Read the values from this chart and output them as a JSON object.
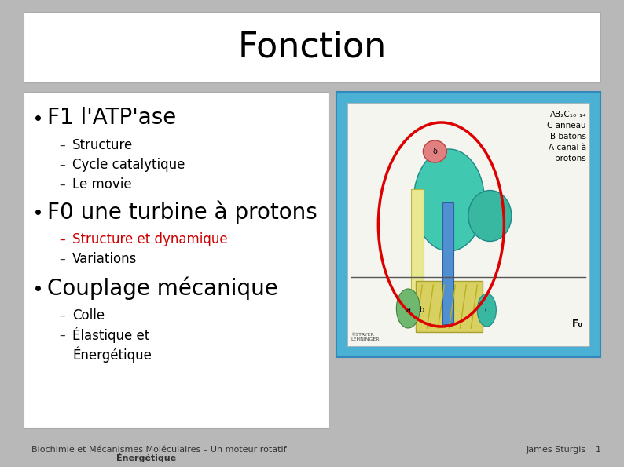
{
  "title": "Fonction",
  "bg_color": "#b8b8b8",
  "title_box_color": "#ffffff",
  "content_box_color": "#ffffff",
  "title_text_color": "#000000",
  "title_fontsize": 32,
  "bullet1": "F1 l'ATP'ase",
  "bullet1_fontsize": 20,
  "sub1a": "Structure",
  "sub1b": "Cycle catalytique",
  "sub1c": "Le movie",
  "sub_fontsize": 12,
  "bullet2": "F0 une turbine à protons",
  "bullet2_fontsize": 20,
  "sub2a": "Structure et dynamique",
  "sub2a_color": "#cc0000",
  "sub2b": "Variations",
  "bullet3": "Couplage mécanique",
  "bullet3_fontsize": 20,
  "sub3a": "Colle",
  "sub3b": "Élastique et",
  "sub3b_overlap": "Énergétique",
  "footer_left": "Biochimie et Mécanismes Moléculaires – Un moteur rotatif",
  "footer_right": "James Sturgis",
  "footer_page": "1",
  "footer_fontsize": 8,
  "img_bg_color": "#4ab0d4",
  "img_inner_color": "#f5f5f0",
  "img_label": "AB₂C₁₀-₁₄\nC anneau\nB batons\nA canal à\nprotons"
}
